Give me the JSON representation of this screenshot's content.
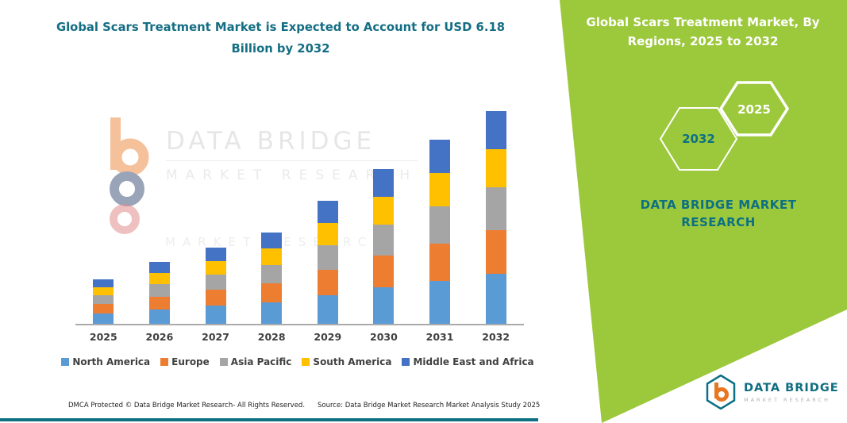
{
  "left_section": {
    "footer_dmca": "DMCA Protected © Data Bridge Market Research-  All Rights Reserved.",
    "footer_source": "Source: Data Bridge Market Research  Market Analysis Study 2025",
    "watermark": {
      "line1": "DATA BRIDGE",
      "line2": "MARKET RESEARCH",
      "line3": "MARKET RESEARCH"
    }
  },
  "right_panel": {
    "background": "#9CC83C",
    "accent_teal": "#0D7083",
    "title": "Global Scars Treatment Market, By Regions, 2025 to 2032",
    "year_back": "2032",
    "year_front": "2025",
    "brand_text": "DATA BRIDGE MARKET RESEARCH"
  },
  "footer_logo": {
    "title": "DATA BRIDGE",
    "subtitle": "MARKET RESEARCH"
  },
  "icons": {
    "watermark_mark": "data-bridge-b-icon",
    "hexagon_back": "hexagon-outline-2032",
    "hexagon_front": "hexagon-outline-2025",
    "footer_mark": "data-bridge-hexagon-b-icon"
  },
  "chart_data": {
    "type": "bar",
    "stacked": true,
    "title": "Global Scars Treatment Market is Expected to Account for USD 6.18 Billion by 2032",
    "categories": [
      "2025",
      "2026",
      "2027",
      "2028",
      "2029",
      "2030",
      "2031",
      "2032"
    ],
    "series": [
      {
        "name": "North America",
        "color": "#5B9BD5",
        "values": [
          0.31,
          0.42,
          0.52,
          0.63,
          0.83,
          1.05,
          1.25,
          1.45
        ]
      },
      {
        "name": "Europe",
        "color": "#ED7D31",
        "values": [
          0.27,
          0.37,
          0.45,
          0.55,
          0.73,
          0.92,
          1.09,
          1.27
        ]
      },
      {
        "name": "Asia Pacific",
        "color": "#A5A5A5",
        "values": [
          0.26,
          0.36,
          0.44,
          0.53,
          0.71,
          0.9,
          1.07,
          1.24
        ]
      },
      {
        "name": "South America",
        "color": "#FFC000",
        "values": [
          0.24,
          0.32,
          0.4,
          0.48,
          0.64,
          0.81,
          0.96,
          1.11
        ]
      },
      {
        "name": "Middle East and Africa",
        "color": "#4472C4",
        "values": [
          0.24,
          0.33,
          0.39,
          0.47,
          0.64,
          0.8,
          0.96,
          1.11
        ]
      }
    ],
    "totals": [
      1.32,
      1.8,
      2.2,
      2.66,
      3.55,
      4.48,
      5.33,
      6.18
    ],
    "unit": "USD Billion",
    "ylim": [
      0,
      6.5
    ],
    "grid": false,
    "y_axis_visible": false,
    "legend_position": "bottom"
  }
}
